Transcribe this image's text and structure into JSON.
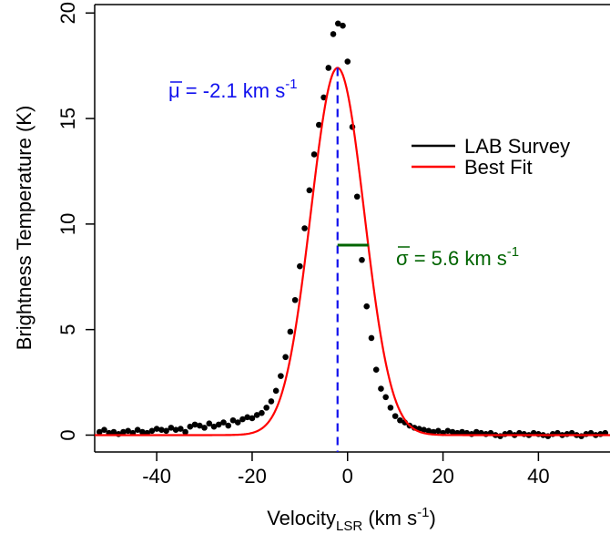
{
  "chart_data": {
    "type": "scatter",
    "xlabel": {
      "main": "Velocity",
      "sub": "LSR",
      "units_open": " (km s",
      "units_exp": "-1",
      "units_close": ")"
    },
    "ylabel": "Brightness Temperature (K)",
    "xlim": [
      -53,
      55
    ],
    "ylim": [
      -0.8,
      20.4
    ],
    "x_ticks": [
      -40,
      -20,
      0,
      20,
      40
    ],
    "y_ticks": [
      0,
      5,
      10,
      15,
      20
    ],
    "x_tick_labels": [
      "-40",
      "-20",
      "0",
      "20",
      "40"
    ],
    "y_tick_labels": [
      "0",
      "5",
      "10",
      "15",
      "20"
    ],
    "grid": false,
    "legend": {
      "position": "right",
      "entries": [
        {
          "label": "LAB Survey",
          "color": "#000000"
        },
        {
          "label": "Best Fit",
          "color": "#ff0000"
        }
      ]
    },
    "series": [
      {
        "name": "LAB Survey",
        "kind": "points",
        "color": "#000000",
        "x": [
          -52,
          -51,
          -50,
          -49,
          -48,
          -47,
          -46,
          -45,
          -44,
          -43,
          -42,
          -41,
          -40,
          -39,
          -38,
          -37,
          -36,
          -35,
          -34,
          -33,
          -32,
          -31,
          -30,
          -29,
          -28,
          -27,
          -26,
          -25,
          -24,
          -23,
          -22,
          -21,
          -20,
          -19,
          -18,
          -17,
          -16,
          -15,
          -14,
          -13,
          -12,
          -11,
          -10,
          -9,
          -8,
          -7,
          -6,
          -5,
          -4,
          -3,
          -2,
          -1,
          0,
          1,
          2,
          3,
          4,
          5,
          6,
          7,
          8,
          9,
          10,
          11,
          12,
          13,
          14,
          15,
          16,
          17,
          18,
          19,
          20,
          21,
          22,
          23,
          24,
          25,
          26,
          27,
          28,
          29,
          30,
          31,
          32,
          33,
          34,
          35,
          36,
          37,
          38,
          39,
          40,
          41,
          42,
          43,
          44,
          45,
          46,
          47,
          48,
          49,
          50,
          51,
          52,
          53,
          54
        ],
        "y": [
          0.15,
          0.25,
          0.1,
          0.15,
          0.05,
          0.15,
          0.2,
          0.1,
          0.25,
          0.15,
          0.1,
          0.2,
          0.3,
          0.25,
          0.2,
          0.35,
          0.25,
          0.3,
          0.15,
          0.4,
          0.5,
          0.45,
          0.35,
          0.55,
          0.4,
          0.5,
          0.6,
          0.45,
          0.7,
          0.6,
          0.75,
          0.85,
          0.8,
          0.95,
          1.05,
          1.3,
          1.6,
          2.1,
          2.8,
          3.7,
          4.9,
          6.4,
          8.0,
          9.8,
          11.6,
          13.3,
          14.7,
          16.0,
          17.4,
          19.0,
          19.5,
          19.4,
          17.7,
          14.6,
          11.3,
          8.3,
          6.1,
          4.6,
          3.1,
          2.2,
          1.8,
          1.3,
          0.9,
          0.7,
          0.6,
          0.45,
          0.35,
          0.3,
          0.25,
          0.2,
          0.15,
          0.2,
          0.1,
          0.2,
          0.15,
          0.1,
          0.15,
          0.1,
          0.05,
          0.15,
          0.1,
          0.05,
          0.1,
          0.0,
          -0.05,
          0.05,
          0.1,
          0.0,
          0.1,
          0.05,
          0.0,
          0.1,
          0.05,
          0.0,
          -0.05,
          0.05,
          0.1,
          0.0,
          0.05,
          0.1,
          0.0,
          -0.05,
          0.05,
          0.1,
          0.0,
          0.05,
          0.1
        ]
      },
      {
        "name": "Best Fit",
        "kind": "gaussian",
        "color": "#ff0000",
        "amplitude": 17.4,
        "mean": -2.1,
        "sigma": 5.6
      }
    ],
    "annotations": {
      "mu": {
        "symbol": "μ",
        "text": " = -2.1 km s",
        "exp": "-1",
        "value": -2.1,
        "color": "#1010ee"
      },
      "sigma": {
        "symbol": "σ",
        "text": " = 5.6 km s",
        "exp": "-1",
        "value": 5.6,
        "color": "#006400"
      }
    }
  }
}
